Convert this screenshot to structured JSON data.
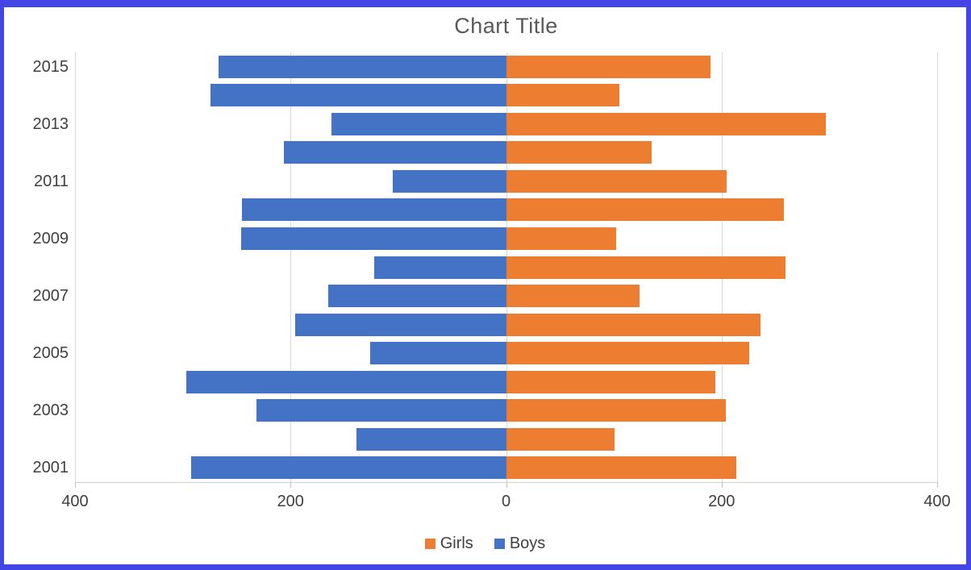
{
  "window": {
    "border_color": "#4346e4"
  },
  "chart_data": {
    "type": "bar",
    "variant": "diverging-horizontal-pyramid",
    "title": "Chart Title",
    "categories": [
      2015,
      2014,
      2013,
      2012,
      2011,
      2010,
      2009,
      2008,
      2007,
      2006,
      2005,
      2004,
      2003,
      2002,
      2001
    ],
    "series": [
      {
        "name": "Girls",
        "side": "right",
        "color": "#ED7D31",
        "values": [
          190,
          105,
          297,
          135,
          205,
          258,
          102,
          259,
          124,
          236,
          226,
          194,
          204,
          101,
          214
        ]
      },
      {
        "name": "Boys",
        "side": "left",
        "color": "#4472C4",
        "values": [
          267,
          274,
          162,
          206,
          105,
          245,
          246,
          122,
          165,
          196,
          126,
          297,
          232,
          139,
          292
        ]
      }
    ],
    "x_axis": {
      "tick_labels": [
        "400",
        "200",
        "0",
        "200",
        "400"
      ],
      "max_each_side": 400,
      "grid": true
    },
    "y_axis": {
      "visible_tick_labels": [
        "2015",
        "2013",
        "2011",
        "2009",
        "2007",
        "2005",
        "2003",
        "2001"
      ],
      "label_every": 2
    },
    "legend": {
      "position": "bottom",
      "entries": [
        {
          "label": "Girls",
          "color": "#ED7D31"
        },
        {
          "label": "Boys",
          "color": "#4472C4"
        }
      ]
    },
    "colors": {
      "gridline": "#d9d9d9",
      "axis_text": "#404040",
      "title_text": "#595959"
    }
  }
}
